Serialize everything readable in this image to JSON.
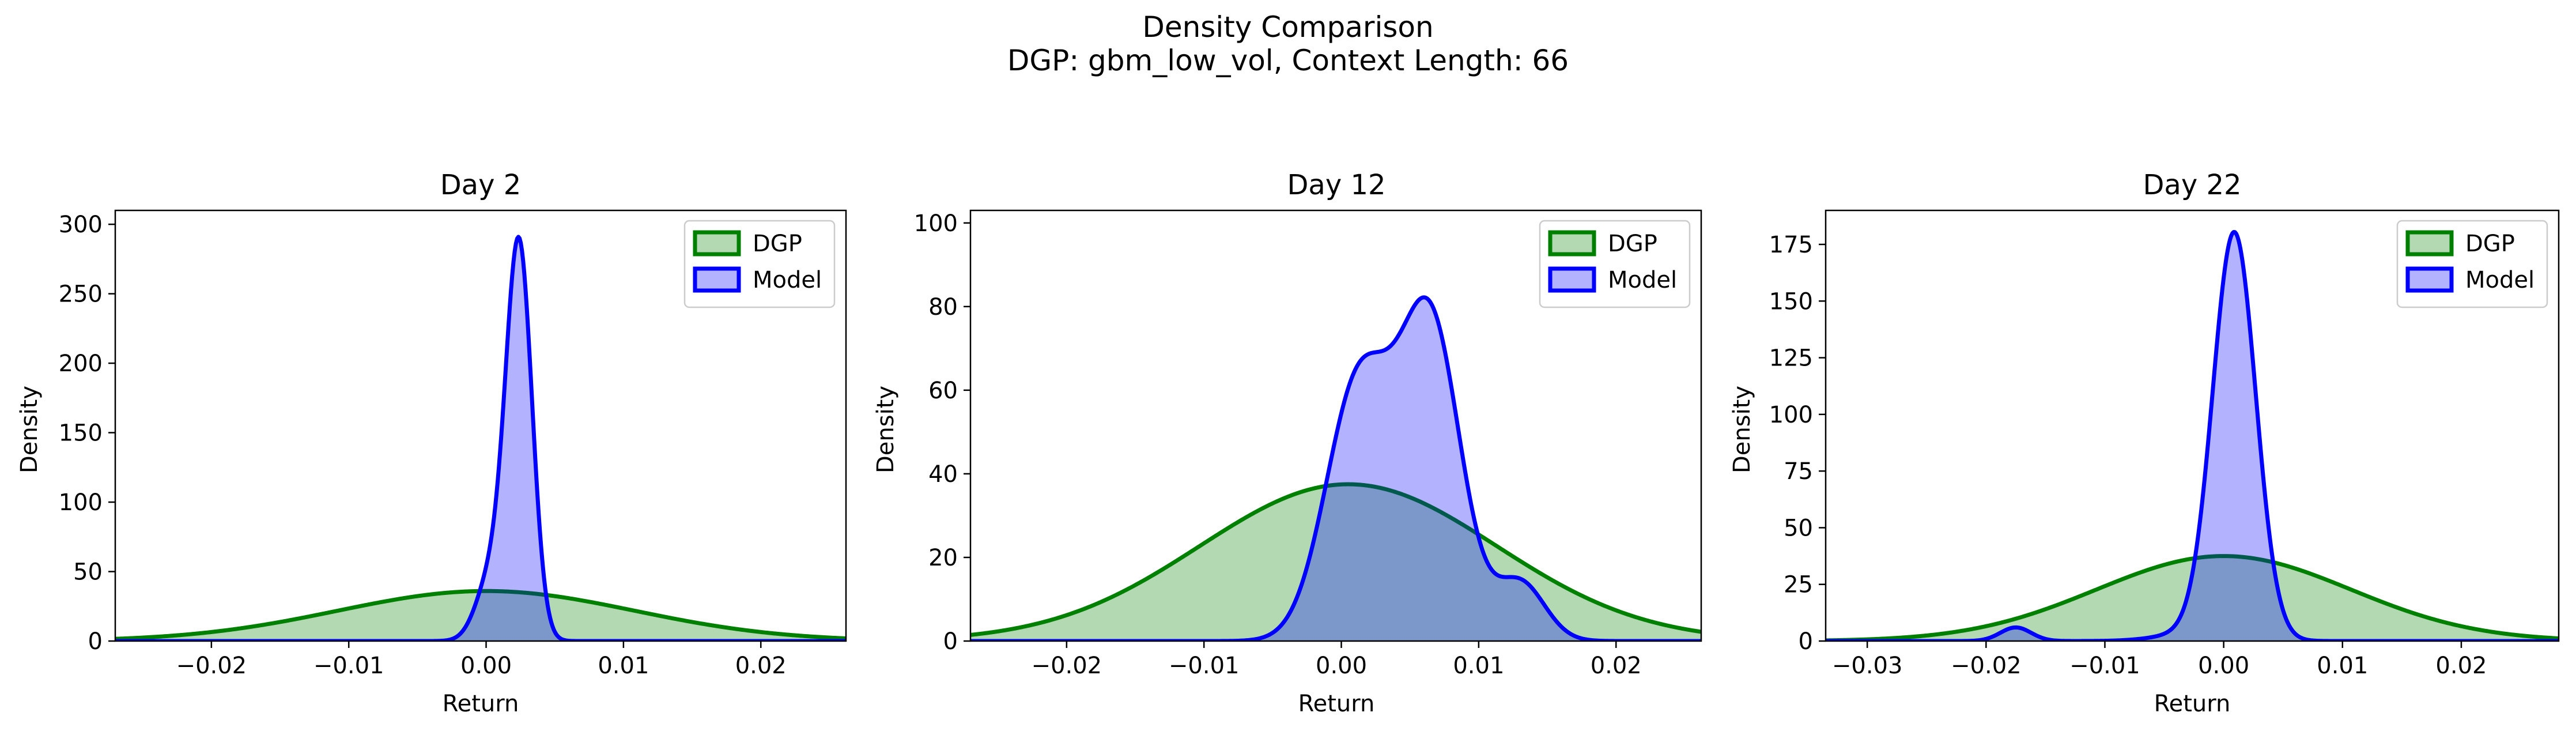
{
  "figure": {
    "title_line1": "Density Comparison",
    "title_line2": "DGP: gbm_low_vol, Context Length: 66"
  },
  "colors": {
    "dgp_line": "#008000",
    "dgp_fill": "#008000",
    "model_line": "#0000ff",
    "model_fill": "#0000ff"
  },
  "chart_data": [
    {
      "type": "area",
      "title": "Day 2",
      "xlabel": "Return",
      "ylabel": "Density",
      "xlim": [
        -0.027,
        0.0262
      ],
      "ylim": [
        0,
        310
      ],
      "xticks": [
        -0.02,
        -0.01,
        0.0,
        0.01,
        0.02
      ],
      "xtick_labels": [
        "−0.02",
        "−0.01",
        "0.00",
        "0.01",
        "0.02"
      ],
      "yticks": [
        0,
        50,
        100,
        150,
        200,
        250,
        300
      ],
      "ytick_labels": [
        "0",
        "50",
        "100",
        "150",
        "200",
        "250",
        "300"
      ],
      "legend_position": "upper right",
      "series": [
        {
          "name": "DGP",
          "kind": "normal",
          "mu": 0.0,
          "sigma": 0.0108,
          "peak": 36
        },
        {
          "name": "Model",
          "kind": "mixture",
          "components": [
            {
              "mu": 0.0024,
              "sigma": 0.00095,
              "peak": 282
            },
            {
              "mu": 0.0004,
              "sigma": 0.0011,
              "peak": 45
            }
          ]
        }
      ]
    },
    {
      "type": "area",
      "title": "Day 12",
      "xlabel": "Return",
      "ylabel": "Density",
      "xlim": [
        -0.027,
        0.0262
      ],
      "ylim": [
        0,
        103
      ],
      "xticks": [
        -0.02,
        -0.01,
        0.0,
        0.01,
        0.02
      ],
      "xtick_labels": [
        "−0.02",
        "−0.01",
        "0.00",
        "0.01",
        "0.02"
      ],
      "yticks": [
        0,
        20,
        40,
        60,
        80,
        100
      ],
      "ytick_labels": [
        "0",
        "20",
        "40",
        "60",
        "80",
        "100"
      ],
      "legend_position": "upper right",
      "series": [
        {
          "name": "DGP",
          "kind": "normal",
          "mu": 0.0005,
          "sigma": 0.0108,
          "peak": 37.5
        },
        {
          "name": "Model",
          "kind": "mixture",
          "components": [
            {
              "mu": 0.0065,
              "sigma": 0.0022,
              "peak": 75
            },
            {
              "mu": 0.0013,
              "sigma": 0.0024,
              "peak": 62
            },
            {
              "mu": 0.013,
              "sigma": 0.0018,
              "peak": 14
            }
          ]
        }
      ]
    },
    {
      "type": "area",
      "title": "Day 22",
      "xlabel": "Return",
      "ylabel": "Density",
      "xlim": [
        -0.0335,
        0.0282
      ],
      "ylim": [
        0,
        190
      ],
      "xticks": [
        -0.03,
        -0.02,
        -0.01,
        0.0,
        0.01,
        0.02
      ],
      "xtick_labels": [
        "−0.03",
        "−0.02",
        "−0.01",
        "0.00",
        "0.01",
        "0.02"
      ],
      "yticks": [
        0,
        25,
        50,
        75,
        100,
        125,
        150,
        175
      ],
      "ytick_labels": [
        "0",
        "25",
        "50",
        "75",
        "100",
        "125",
        "150",
        "175"
      ],
      "legend_position": "upper right",
      "series": [
        {
          "name": "DGP",
          "kind": "normal",
          "mu": 0.0,
          "sigma": 0.0107,
          "peak": 37.5
        },
        {
          "name": "Model",
          "kind": "mixture",
          "components": [
            {
              "mu": 0.0009,
              "sigma": 0.0018,
              "peak": 178
            },
            {
              "mu": -0.0175,
              "sigma": 0.0013,
              "peak": 6
            },
            {
              "mu": -0.002,
              "sigma": 0.003,
              "peak": 4
            }
          ]
        }
      ]
    }
  ]
}
